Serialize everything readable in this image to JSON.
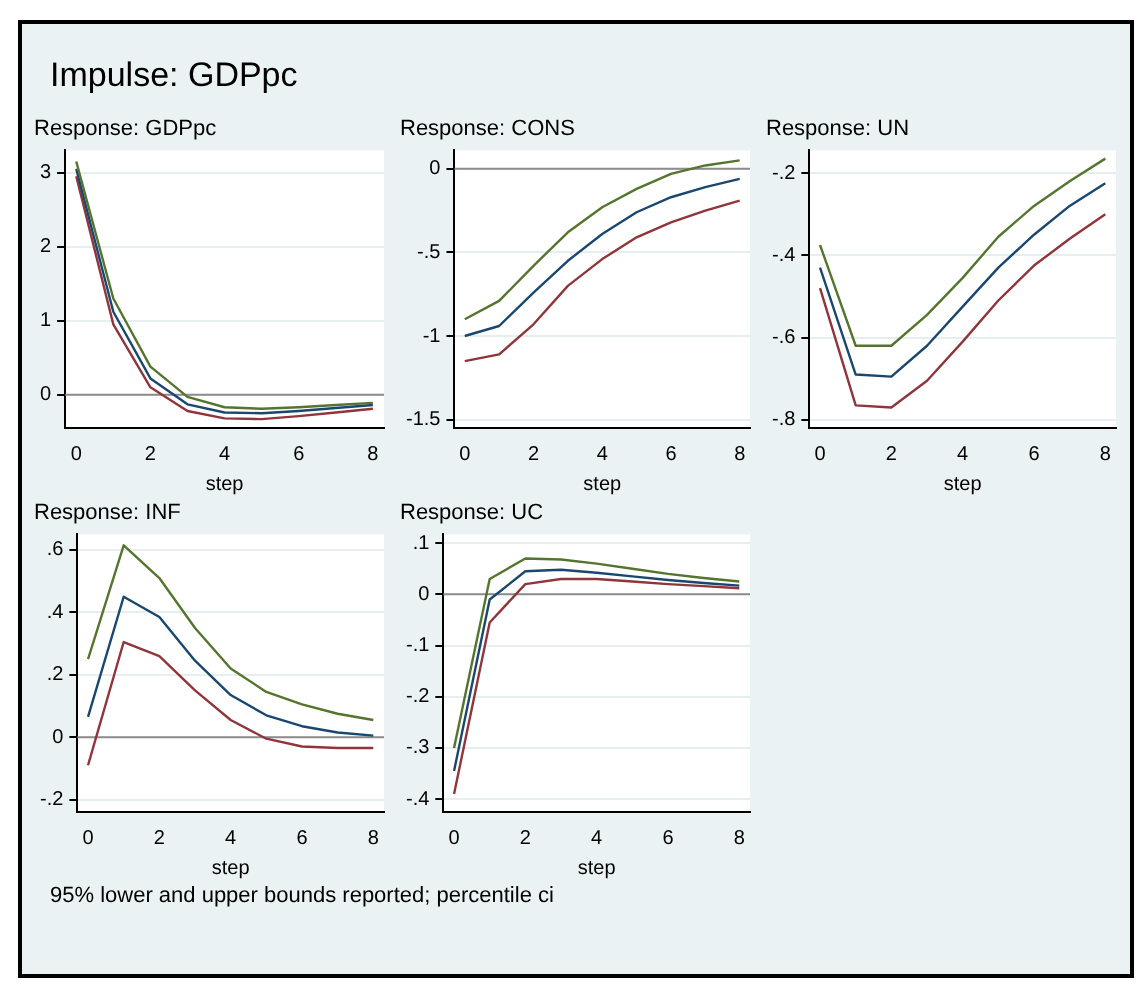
{
  "chart_data": [
    {
      "type": "line",
      "title": "Impulse: GDPpc",
      "subtitle": "Response: GDPpc",
      "xlabel": "step",
      "x": [
        0,
        1,
        2,
        3,
        4,
        5,
        6,
        7,
        8
      ],
      "xlim": [
        -0.3,
        8.3
      ],
      "xticks": [
        0,
        2,
        4,
        6,
        8
      ],
      "ylim": [
        -0.45,
        3.3
      ],
      "yticks": [
        0,
        1,
        2,
        3
      ],
      "grid": "y",
      "ref_lines": [
        {
          "axis": "y",
          "value": 0,
          "color": "#8c8c8c"
        }
      ],
      "series": [
        {
          "color": "#55752f",
          "values": [
            3.15,
            1.3,
            0.38,
            -0.03,
            -0.17,
            -0.19,
            -0.17,
            -0.14,
            -0.11
          ]
        },
        {
          "color": "#1a476f",
          "values": [
            3.05,
            1.12,
            0.22,
            -0.13,
            -0.24,
            -0.25,
            -0.22,
            -0.18,
            -0.14
          ]
        },
        {
          "color": "#90353b",
          "values": [
            2.95,
            0.95,
            0.1,
            -0.22,
            -0.32,
            -0.33,
            -0.29,
            -0.24,
            -0.19
          ]
        }
      ]
    },
    {
      "type": "line",
      "title": "Response: CONS",
      "xlabel": "step",
      "x": [
        0,
        1,
        2,
        3,
        4,
        5,
        6,
        7,
        8
      ],
      "xlim": [
        -0.3,
        8.3
      ],
      "xticks": [
        0,
        2,
        4,
        6,
        8
      ],
      "ylim": [
        -1.55,
        0.11
      ],
      "yticks": [
        {
          "value": -1.5,
          "label": "-1.5"
        },
        {
          "value": -1,
          "label": "-1"
        },
        {
          "value": -0.5,
          "label": "-.5"
        },
        {
          "value": 0,
          "label": "0"
        }
      ],
      "grid": "y",
      "ref_lines": [
        {
          "axis": "y",
          "value": 0,
          "color": "#8c8c8c"
        }
      ],
      "series": [
        {
          "color": "#55752f",
          "values": [
            -0.9,
            -0.79,
            -0.58,
            -0.38,
            -0.23,
            -0.12,
            -0.03,
            0.02,
            0.05
          ]
        },
        {
          "color": "#1a476f",
          "values": [
            -1.0,
            -0.94,
            -0.74,
            -0.55,
            -0.39,
            -0.26,
            -0.17,
            -0.11,
            -0.06
          ]
        },
        {
          "color": "#90353b",
          "values": [
            -1.15,
            -1.11,
            -0.93,
            -0.7,
            -0.54,
            -0.41,
            -0.32,
            -0.25,
            -0.19
          ]
        }
      ]
    },
    {
      "type": "line",
      "title": "Response: UN",
      "xlabel": "step",
      "x": [
        0,
        1,
        2,
        3,
        4,
        5,
        6,
        7,
        8
      ],
      "xlim": [
        -0.3,
        8.3
      ],
      "xticks": [
        0,
        2,
        4,
        6,
        8
      ],
      "ylim": [
        -0.82,
        -0.145
      ],
      "yticks": [
        {
          "value": -0.8,
          "label": "-.8"
        },
        {
          "value": -0.6,
          "label": "-.6"
        },
        {
          "value": -0.4,
          "label": "-.4"
        },
        {
          "value": -0.2,
          "label": "-.2"
        }
      ],
      "grid": "y",
      "series": [
        {
          "color": "#55752f",
          "values": [
            -0.375,
            -0.62,
            -0.62,
            -0.545,
            -0.455,
            -0.355,
            -0.28,
            -0.22,
            -0.165
          ]
        },
        {
          "color": "#1a476f",
          "values": [
            -0.43,
            -0.69,
            -0.695,
            -0.62,
            -0.525,
            -0.43,
            -0.35,
            -0.28,
            -0.225
          ]
        },
        {
          "color": "#90353b",
          "values": [
            -0.48,
            -0.765,
            -0.77,
            -0.705,
            -0.61,
            -0.51,
            -0.425,
            -0.36,
            -0.3
          ]
        }
      ]
    },
    {
      "type": "line",
      "title": "Response: INF",
      "xlabel": "step",
      "x": [
        0,
        1,
        2,
        3,
        4,
        5,
        6,
        7,
        8
      ],
      "xlim": [
        -0.3,
        8.3
      ],
      "xticks": [
        0,
        2,
        4,
        6,
        8
      ],
      "ylim": [
        -0.24,
        0.65
      ],
      "yticks": [
        {
          "value": -0.2,
          "label": "-.2"
        },
        {
          "value": 0,
          "label": "0"
        },
        {
          "value": 0.2,
          "label": ".2"
        },
        {
          "value": 0.4,
          "label": ".4"
        },
        {
          "value": 0.6,
          "label": ".6"
        }
      ],
      "grid": "y",
      "ref_lines": [
        {
          "axis": "y",
          "value": 0,
          "color": "#8c8c8c"
        }
      ],
      "series": [
        {
          "color": "#55752f",
          "values": [
            0.25,
            0.615,
            0.51,
            0.35,
            0.22,
            0.145,
            0.105,
            0.075,
            0.055
          ]
        },
        {
          "color": "#1a476f",
          "values": [
            0.065,
            0.45,
            0.385,
            0.245,
            0.135,
            0.07,
            0.035,
            0.015,
            0.005
          ]
        },
        {
          "color": "#90353b",
          "values": [
            -0.09,
            0.305,
            0.26,
            0.15,
            0.055,
            -0.005,
            -0.03,
            -0.035,
            -0.035
          ]
        }
      ]
    },
    {
      "type": "line",
      "title": "Response: UC",
      "xlabel": "step",
      "x": [
        0,
        1,
        2,
        3,
        4,
        5,
        6,
        7,
        8
      ],
      "xlim": [
        -0.3,
        8.3
      ],
      "xticks": [
        0,
        2,
        4,
        6,
        8
      ],
      "ylim": [
        -0.425,
        0.117
      ],
      "yticks": [
        {
          "value": -0.4,
          "label": "-.4"
        },
        {
          "value": -0.3,
          "label": "-.3"
        },
        {
          "value": -0.2,
          "label": "-.2"
        },
        {
          "value": -0.1,
          "label": "-.1"
        },
        {
          "value": 0,
          "label": "0"
        },
        {
          "value": 0.1,
          "label": ".1"
        }
      ],
      "grid": "y",
      "ref_lines": [
        {
          "axis": "y",
          "value": 0,
          "color": "#8c8c8c"
        }
      ],
      "annotations": [
        "95% lower and upper bounds reported; percentile ci"
      ],
      "series": [
        {
          "color": "#55752f",
          "values": [
            -0.3,
            0.03,
            0.07,
            0.068,
            0.06,
            0.05,
            0.04,
            0.032,
            0.025
          ]
        },
        {
          "color": "#1a476f",
          "values": [
            -0.345,
            -0.01,
            0.045,
            0.048,
            0.042,
            0.035,
            0.028,
            0.022,
            0.017
          ]
        },
        {
          "color": "#90353b",
          "values": [
            -0.39,
            -0.055,
            0.02,
            0.03,
            0.03,
            0.025,
            0.02,
            0.016,
            0.012
          ]
        }
      ]
    }
  ]
}
